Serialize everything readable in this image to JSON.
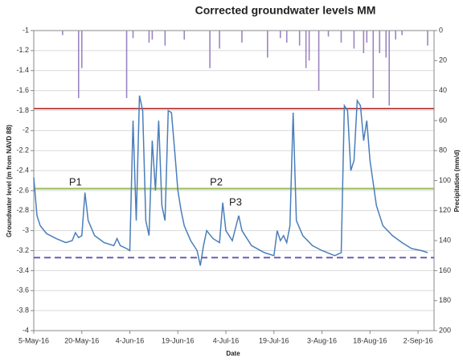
{
  "chart_data": {
    "type": "line",
    "title": "Corrected groundwater levels MM",
    "x_label": "Date",
    "y_label": "Groundwater level (m from NAVD 88)",
    "y2_label": "Precipitation (mm/d)",
    "xlim": [
      "2016-05-05",
      "2016-09-07"
    ],
    "xticks": [
      {
        "value": "2016-05-05",
        "label": "5-May-16"
      },
      {
        "value": "2016-05-20",
        "label": "20-May-16"
      },
      {
        "value": "2016-06-04",
        "label": "4-Jun-16"
      },
      {
        "value": "2016-06-19",
        "label": "19-Jun-16"
      },
      {
        "value": "2016-07-04",
        "label": "4-Jul-16"
      },
      {
        "value": "2016-07-19",
        "label": "19-Jul-16"
      },
      {
        "value": "2016-08-03",
        "label": "3-Aug-16"
      },
      {
        "value": "2016-08-18",
        "label": "18-Aug-16"
      },
      {
        "value": "2016-09-02",
        "label": "2-Sep-16"
      }
    ],
    "ylim": [
      -4,
      -1
    ],
    "yticks": [
      -4,
      -3.8,
      -3.6,
      -3.4,
      -3.2,
      -3,
      -2.8,
      -2.6,
      -2.4,
      -2.2,
      -2,
      -1.8,
      -1.6,
      -1.4,
      -1.2,
      -1
    ],
    "y2lim": [
      200,
      0
    ],
    "y2ticks": [
      200,
      180,
      160,
      140,
      120,
      100,
      80,
      60,
      40,
      20,
      0
    ],
    "grid": true,
    "series": [
      {
        "type": "line",
        "axis": "y",
        "color": "#4a7ebb",
        "x": [
          "2016-05-05",
          "2016-05-06",
          "2016-05-07",
          "2016-05-09",
          "2016-05-12",
          "2016-05-15",
          "2016-05-17",
          "2016-05-18",
          "2016-05-19",
          "2016-05-20",
          "2016-05-21",
          "2016-05-22",
          "2016-05-24",
          "2016-05-27",
          "2016-05-30",
          "2016-05-31",
          "2016-06-01",
          "2016-06-03",
          "2016-06-04",
          "2016-06-05",
          "2016-06-06",
          "2016-06-07",
          "2016-06-08",
          "2016-06-09",
          "2016-06-10",
          "2016-06-11",
          "2016-06-12",
          "2016-06-13",
          "2016-06-14",
          "2016-06-15",
          "2016-06-16",
          "2016-06-17",
          "2016-06-18",
          "2016-06-19",
          "2016-06-20",
          "2016-06-21",
          "2016-06-23",
          "2016-06-25",
          "2016-06-26",
          "2016-06-27",
          "2016-06-28",
          "2016-06-30",
          "2016-07-02",
          "2016-07-03",
          "2016-07-04",
          "2016-07-06",
          "2016-07-08",
          "2016-07-09",
          "2016-07-12",
          "2016-07-16",
          "2016-07-19",
          "2016-07-20",
          "2016-07-21",
          "2016-07-22",
          "2016-07-23",
          "2016-07-24",
          "2016-07-25",
          "2016-07-26",
          "2016-07-28",
          "2016-07-31",
          "2016-08-03",
          "2016-08-07",
          "2016-08-09",
          "2016-08-10",
          "2016-08-11",
          "2016-08-12",
          "2016-08-13",
          "2016-08-14",
          "2016-08-15",
          "2016-08-16",
          "2016-08-17",
          "2016-08-18",
          "2016-08-20",
          "2016-08-22",
          "2016-08-25",
          "2016-08-28",
          "2016-08-31",
          "2016-09-03",
          "2016-09-05"
        ],
        "values": [
          -2.47,
          -2.85,
          -2.95,
          -3.03,
          -3.08,
          -3.12,
          -3.1,
          -3.02,
          -3.07,
          -3.05,
          -2.62,
          -2.9,
          -3.05,
          -3.12,
          -3.15,
          -3.08,
          -3.15,
          -3.18,
          -3.2,
          -1.9,
          -2.9,
          -1.65,
          -1.8,
          -2.9,
          -3.05,
          -2.1,
          -2.6,
          -1.9,
          -2.75,
          -2.9,
          -1.8,
          -1.82,
          -2.2,
          -2.6,
          -2.8,
          -2.95,
          -3.1,
          -3.2,
          -3.35,
          -3.15,
          -3.0,
          -3.08,
          -3.12,
          -2.72,
          -3.0,
          -3.1,
          -2.85,
          -3.0,
          -3.15,
          -3.22,
          -3.25,
          -3.0,
          -3.1,
          -3.05,
          -3.12,
          -2.95,
          -1.82,
          -2.9,
          -3.05,
          -3.15,
          -3.2,
          -3.25,
          -3.22,
          -1.75,
          -1.8,
          -2.4,
          -2.3,
          -1.7,
          -1.75,
          -2.1,
          -1.9,
          -2.3,
          -2.75,
          -2.95,
          -3.05,
          -3.12,
          -3.18,
          -3.2,
          -3.22
        ]
      },
      {
        "type": "bar",
        "axis": "y2",
        "color": "#9b86c0",
        "x": [
          "2016-05-14",
          "2016-05-19",
          "2016-05-20",
          "2016-06-03",
          "2016-06-05",
          "2016-06-10",
          "2016-06-11",
          "2016-06-15",
          "2016-06-21",
          "2016-06-29",
          "2016-07-02",
          "2016-07-09",
          "2016-07-17",
          "2016-07-21",
          "2016-07-23",
          "2016-07-27",
          "2016-07-29",
          "2016-07-30",
          "2016-08-02",
          "2016-08-05",
          "2016-08-09",
          "2016-08-13",
          "2016-08-16",
          "2016-08-17",
          "2016-08-19",
          "2016-08-21",
          "2016-08-23",
          "2016-08-24",
          "2016-08-26",
          "2016-08-28",
          "2016-09-05"
        ],
        "values": [
          3,
          45,
          25,
          45,
          5,
          8,
          6,
          10,
          6,
          25,
          12,
          8,
          18,
          5,
          8,
          10,
          25,
          20,
          40,
          4,
          8,
          12,
          15,
          8,
          45,
          15,
          18,
          50,
          6,
          3,
          10
        ]
      }
    ],
    "hlines": [
      {
        "value": -1.78,
        "color": "#c0504d",
        "dash": false
      },
      {
        "value": -2.58,
        "color": "#9bbb59",
        "dash": false
      },
      {
        "value": -3.27,
        "color": "#6b5fb5",
        "dash": true
      }
    ],
    "annotations": [
      {
        "text": "P1",
        "x": "2016-05-18",
        "y": -2.52
      },
      {
        "text": "P2",
        "x": "2016-07-01",
        "y": -2.52
      },
      {
        "text": "P3",
        "x": "2016-07-07",
        "y": -2.72
      }
    ]
  }
}
